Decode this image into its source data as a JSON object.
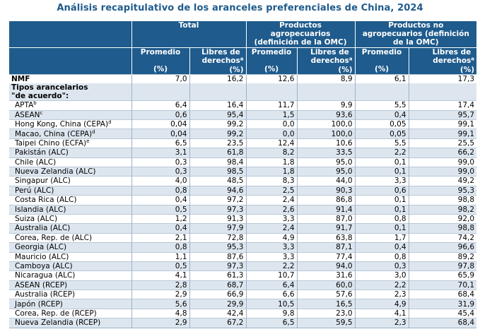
{
  "title": "Análisis recapitulativo de los aranceles preferenciales de China, 2024",
  "headers": {
    "total": "Total",
    "agro": "Productos agropecuarios (definición de la OMC)",
    "nonagro": "Productos no agropecuarios (definición de la OMC)",
    "promedio": "Promedio",
    "unit": "(%)",
    "libres": "Libres de derechos",
    "libres_sup": "a",
    "libres_unit": "(%)"
  },
  "nmf": {
    "label": "NMF",
    "values": [
      "7,0",
      "16,2",
      "12,6",
      "8,9",
      "6,1",
      "17,3"
    ]
  },
  "section": {
    "label_line1": "Tipos arancelarios",
    "label_line2": "\"de acuerdo\":"
  },
  "rows": [
    {
      "label": "APTA",
      "sup": "b",
      "values": [
        "6,4",
        "16,4",
        "11,7",
        "9,9",
        "5,5",
        "17,4"
      ]
    },
    {
      "label": "ASEAN",
      "sup": "c",
      "values": [
        "0,6",
        "95,4",
        "1,5",
        "93,6",
        "0,4",
        "95,7"
      ]
    },
    {
      "label": "Hong Kong, China (CEPA)",
      "sup": "d",
      "values": [
        "0,04",
        "99,2",
        "0,0",
        "100,0",
        "0,05",
        "99,1"
      ]
    },
    {
      "label": "Macao, China (CEPA)",
      "sup": "d",
      "values": [
        "0,04",
        "99,2",
        "0,0",
        "100,0",
        "0,05",
        "99,1"
      ]
    },
    {
      "label": "Taipei Chino (ECFA)",
      "sup": "e",
      "values": [
        "6,5",
        "23,5",
        "12,4",
        "10,6",
        "5,5",
        "25,5"
      ]
    },
    {
      "label": "Pakistán (ALC)",
      "sup": "",
      "values": [
        "3,1",
        "61,8",
        "8,2",
        "33,5",
        "2,2",
        "66,2"
      ]
    },
    {
      "label": "Chile (ALC)",
      "sup": "",
      "values": [
        "0,3",
        "98,4",
        "1,8",
        "95,0",
        "0,1",
        "99,0"
      ]
    },
    {
      "label": "Nueva Zelandia (ALC)",
      "sup": "",
      "values": [
        "0,3",
        "98,5",
        "1,8",
        "95,0",
        "0,1",
        "99,0"
      ]
    },
    {
      "label": "Singapur (ALC)",
      "sup": "",
      "values": [
        "4,0",
        "48,5",
        "8,3",
        "44,0",
        "3,3",
        "49,2"
      ]
    },
    {
      "label": "Perú (ALC)",
      "sup": "",
      "values": [
        "0,8",
        "94,6",
        "2,5",
        "90,3",
        "0,6",
        "95,3"
      ]
    },
    {
      "label": "Costa Rica (ALC)",
      "sup": "",
      "values": [
        "0,4",
        "97,2",
        "2,4",
        "86,8",
        "0,1",
        "98,8"
      ]
    },
    {
      "label": "Islandia (ALC)",
      "sup": "",
      "values": [
        "0,5",
        "97,3",
        "2,6",
        "91,4",
        "0,1",
        "98,2"
      ]
    },
    {
      "label": "Suiza (ALC)",
      "sup": "",
      "values": [
        "1,2",
        "91,3",
        "3,3",
        "87,0",
        "0,8",
        "92,0"
      ]
    },
    {
      "label": "Australia (ALC)",
      "sup": "",
      "values": [
        "0,4",
        "97,9",
        "2,4",
        "91,7",
        "0,1",
        "98,8"
      ]
    },
    {
      "label": "Corea, Rep. de (ALC)",
      "sup": "",
      "values": [
        "2,1",
        "72,8",
        "4,9",
        "63,8",
        "1,7",
        "74,2"
      ]
    },
    {
      "label": "Georgia (ALC)",
      "sup": "",
      "values": [
        "0,8",
        "95,3",
        "3,3",
        "87,1",
        "0,4",
        "96,6"
      ]
    },
    {
      "label": "Mauricio (ALC)",
      "sup": "",
      "values": [
        "1,1",
        "87,6",
        "3,3",
        "77,4",
        "0,8",
        "89,2"
      ]
    },
    {
      "label": "Camboya (ALC)",
      "sup": "",
      "values": [
        "0,5",
        "97,3",
        "2,2",
        "94,0",
        "0,3",
        "97,8"
      ]
    },
    {
      "label": "Nicaragua (ALC)",
      "sup": "",
      "values": [
        "4,1",
        "61,3",
        "10,7",
        "31,6",
        "3,0",
        "65,9"
      ]
    },
    {
      "label": "ASEAN (RCEP)",
      "sup": "",
      "values": [
        "2,8",
        "68,7",
        "6,4",
        "60,0",
        "2,2",
        "70,1"
      ]
    },
    {
      "label": "Australia (RCEP)",
      "sup": "",
      "values": [
        "2,9",
        "66,9",
        "6,6",
        "57,6",
        "2,3",
        "68,4"
      ]
    },
    {
      "label": "Japón (RCEP)",
      "sup": "",
      "values": [
        "5,6",
        "29,9",
        "10,5",
        "16,5",
        "4,9",
        "31,9"
      ]
    },
    {
      "label": "Corea, Rep. de (RCEP)",
      "sup": "",
      "values": [
        "4,8",
        "42,4",
        "9,8",
        "23,0",
        "4,1",
        "45,4"
      ]
    },
    {
      "label": "Nueva Zelandia (RCEP)",
      "sup": "",
      "values": [
        "2,9",
        "67,2",
        "6,5",
        "59,5",
        "2,3",
        "68,4"
      ]
    }
  ]
}
